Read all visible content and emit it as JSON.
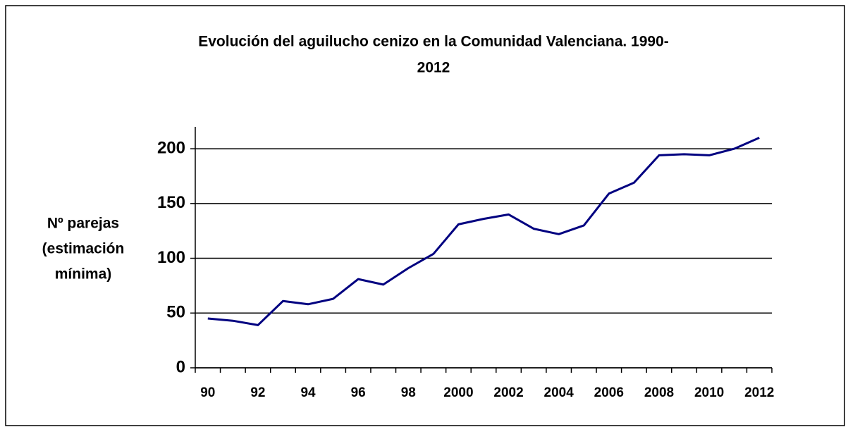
{
  "chart_data": {
    "type": "line",
    "title": [
      "Evolución del aguilucho cenizo en la Comunidad Valenciana. 1990-",
      "2012"
    ],
    "y_label": [
      "Nº parejas",
      "(estimación",
      "mínima)"
    ],
    "categories": [
      "90",
      null,
      "92",
      null,
      "94",
      null,
      "96",
      null,
      "98",
      null,
      "2000",
      null,
      "2002",
      null,
      "2004",
      null,
      "2006",
      null,
      "2008",
      null,
      "2010",
      null,
      "2012"
    ],
    "series": [
      {
        "color": "#000080",
        "values": [
          45,
          43,
          39,
          61,
          58,
          63,
          81,
          76,
          91,
          104,
          131,
          136,
          140,
          127,
          122,
          130,
          159,
          169,
          194,
          195,
          194,
          200,
          210
        ]
      }
    ],
    "ylim": [
      0,
      220
    ],
    "yticks": [
      0,
      50,
      100,
      150,
      200
    ],
    "grid": true
  }
}
